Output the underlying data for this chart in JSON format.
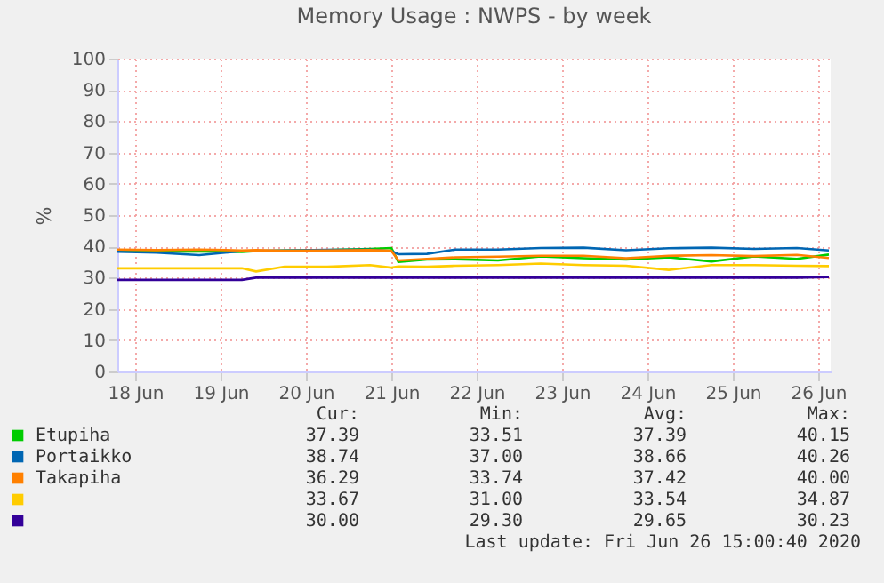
{
  "chart_data": {
    "type": "line",
    "title": "Memory Usage : NWPS - by week",
    "ylabel": "%",
    "x": [
      "2020-06-18T07:00",
      "2020-06-18T18:00",
      "2020-06-19T06:00",
      "2020-06-19T18:00",
      "2020-06-19T22:00",
      "2020-06-20T06:00",
      "2020-06-20T18:00",
      "2020-06-21T06:00",
      "2020-06-21T12:00",
      "2020-06-21T14:00",
      "2020-06-21T22:00",
      "2020-06-22T06:00",
      "2020-06-22T18:00",
      "2020-06-23T06:00",
      "2020-06-23T18:00",
      "2020-06-24T06:00",
      "2020-06-24T18:00",
      "2020-06-25T06:00",
      "2020-06-25T18:00",
      "2020-06-26T06:00",
      "2020-06-26T15:00"
    ],
    "series": [
      {
        "name": "Etupiha",
        "color": "#00cc00",
        "values": [
          38.5,
          38.3,
          38.4,
          38.2,
          38.5,
          38.7,
          38.8,
          39.2,
          39.5,
          35.0,
          35.8,
          35.9,
          35.5,
          36.8,
          36.2,
          35.8,
          36.5,
          35.2,
          36.8,
          36.0,
          37.4
        ]
      },
      {
        "name": "Portaikko",
        "color": "#0066b3",
        "values": [
          38.3,
          38.0,
          37.2,
          38.5,
          38.6,
          38.7,
          38.9,
          39.0,
          38.5,
          37.5,
          37.6,
          39.0,
          39.0,
          39.5,
          39.6,
          38.8,
          39.4,
          39.6,
          39.2,
          39.5,
          38.7
        ]
      },
      {
        "name": "Takapiha",
        "color": "#ff8000",
        "values": [
          39.0,
          38.8,
          39.0,
          38.7,
          38.8,
          38.6,
          38.7,
          38.8,
          38.6,
          35.5,
          36.0,
          36.5,
          36.7,
          37.0,
          37.0,
          36.2,
          37.0,
          37.2,
          36.9,
          37.3,
          36.3
        ]
      },
      {
        "color": "#ffcc00",
        "values": [
          33.0,
          33.0,
          33.0,
          33.0,
          32.0,
          33.5,
          33.5,
          34.0,
          33.2,
          33.6,
          33.5,
          33.8,
          34.0,
          34.5,
          34.0,
          33.8,
          32.5,
          34.0,
          34.0,
          33.8,
          33.7
        ]
      },
      {
        "color": "#330099",
        "values": [
          29.3,
          29.3,
          29.3,
          29.3,
          30.0,
          30.0,
          30.0,
          30.0,
          30.0,
          30.0,
          30.0,
          30.0,
          30.0,
          30.0,
          30.0,
          30.0,
          30.0,
          30.0,
          30.0,
          30.0,
          30.2
        ]
      }
    ],
    "xlim": [
      "2020-06-18T07:00",
      "2020-06-26T15:30"
    ],
    "xticks": [
      {
        "value": "2020-06-18T12:00",
        "label": "18 Jun"
      },
      {
        "value": "2020-06-19T12:00",
        "label": "19 Jun"
      },
      {
        "value": "2020-06-20T12:00",
        "label": "20 Jun"
      },
      {
        "value": "2020-06-21T12:00",
        "label": "21 Jun"
      },
      {
        "value": "2020-06-22T12:00",
        "label": "22 Jun"
      },
      {
        "value": "2020-06-23T12:00",
        "label": "23 Jun"
      },
      {
        "value": "2020-06-24T12:00",
        "label": "24 Jun"
      },
      {
        "value": "2020-06-25T12:00",
        "label": "25 Jun"
      },
      {
        "value": "2020-06-26T12:00",
        "label": "26 Jun"
      }
    ],
    "ylim": [
      0,
      100
    ],
    "yticks": [
      0,
      10,
      20,
      30,
      40,
      50,
      60,
      70,
      80,
      90,
      100
    ],
    "grid": true,
    "legend": "bottom left",
    "marker": "none",
    "line_style": "solid",
    "annotations": [
      "Cur:",
      "Min:",
      "Avg:",
      "Max:",
      "37.39",
      "33.51",
      "37.39",
      "40.15",
      "38.74",
      "37.00",
      "38.66",
      "40.26",
      "36.29",
      "33.74",
      "37.42",
      "40.00",
      "33.67",
      "31.00",
      "33.54",
      "34.87",
      "30.00",
      "29.30",
      "29.65",
      "30.23",
      "Last update: Fri Jun 26 15:00:40 2020"
    ]
  }
}
